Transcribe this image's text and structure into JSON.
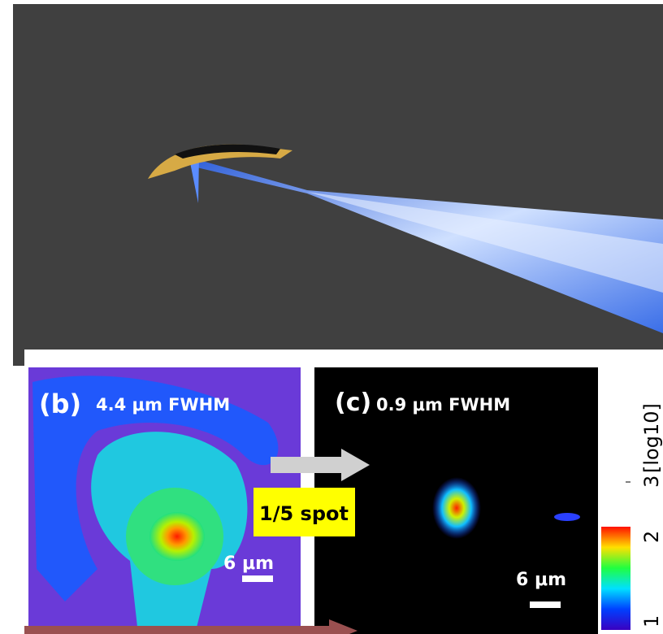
{
  "panel_b": {
    "letter": "(b)",
    "caption": "4.4 μm FWHM",
    "scale_bar": "6 μm"
  },
  "panel_c": {
    "letter": "(c)",
    "caption": "0.9 μm FWHM",
    "scale_bar": "6 μm"
  },
  "comparison": "1/5 spot",
  "colorbar": {
    "unit": "[log10]",
    "ticks": [
      "1",
      "2",
      "3"
    ]
  }
}
